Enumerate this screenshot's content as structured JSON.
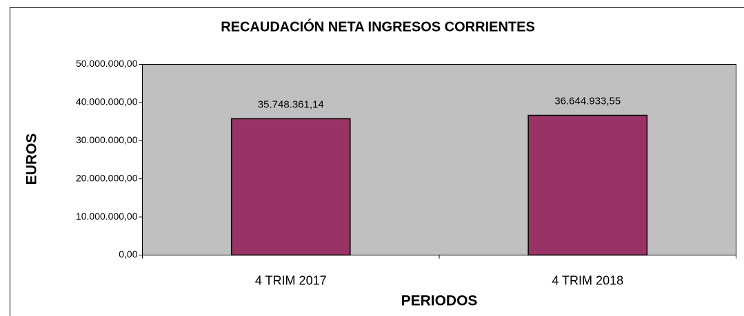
{
  "chart_data": {
    "type": "bar",
    "title": "RECAUDACIÓN NETA INGRESOS CORRIENTES",
    "x_label": "PERIODOS",
    "y_label": "EUROS",
    "categories": [
      "4 TRIM 2017",
      "4 TRIM 2018"
    ],
    "values": [
      35748361.14,
      36644933.55
    ],
    "value_labels": [
      "35.748.361,14",
      "36.644.933,55"
    ],
    "color": "#993366",
    "ylim": [
      0,
      50000000
    ],
    "yticks": [
      {
        "value": 0,
        "label": "0,00"
      },
      {
        "value": 10000000,
        "label": "10.000.000,00"
      },
      {
        "value": 20000000,
        "label": "20.000.000,00"
      },
      {
        "value": 30000000,
        "label": "30.000.000,00"
      },
      {
        "value": 40000000,
        "label": "40.000.000,00"
      },
      {
        "value": 50000000,
        "label": "50.000.000,00"
      }
    ],
    "grid": false
  }
}
